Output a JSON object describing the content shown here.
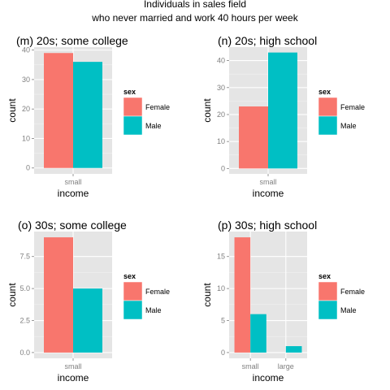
{
  "figure": {
    "title_line1": "Individuals in sales field",
    "title_line2": "who never married and work 40 hours per week"
  },
  "colors": {
    "Female": "#F8766D",
    "Male": "#00BFC4",
    "panel_bg": "#E5E5E5",
    "grid": "#FFFFFF"
  },
  "chart_data": [
    {
      "type": "bar",
      "title": "(m) 20s; some college",
      "xlabel": "income",
      "ylabel": "count",
      "categories": [
        "small"
      ],
      "series": [
        {
          "name": "Female",
          "values": [
            39
          ]
        },
        {
          "name": "Male",
          "values": [
            36
          ]
        }
      ],
      "ylim": [
        -2,
        41
      ],
      "yticks": [
        0,
        10,
        20,
        30,
        40
      ],
      "ytick_labels": [
        "0",
        "10",
        "20",
        "30",
        "40"
      ],
      "legend": {
        "title": "sex",
        "entries": [
          "Female",
          "Male"
        ],
        "placement": "right"
      },
      "grid": true
    },
    {
      "type": "bar",
      "title": "(n) 20s; high school",
      "xlabel": "income",
      "ylabel": "count",
      "categories": [
        "small"
      ],
      "series": [
        {
          "name": "Female",
          "values": [
            23
          ]
        },
        {
          "name": "Male",
          "values": [
            43
          ]
        }
      ],
      "ylim": [
        -2,
        45
      ],
      "yticks": [
        0,
        10,
        20,
        30,
        40
      ],
      "ytick_labels": [
        "0",
        "10",
        "20",
        "30",
        "40"
      ],
      "legend": {
        "title": "sex",
        "entries": [
          "Female",
          "Male"
        ],
        "placement": "right"
      },
      "grid": true
    },
    {
      "type": "bar",
      "title": "(o) 30s; some college",
      "xlabel": "income",
      "ylabel": "count",
      "categories": [
        "small"
      ],
      "series": [
        {
          "name": "Female",
          "values": [
            9
          ]
        },
        {
          "name": "Male",
          "values": [
            5
          ]
        }
      ],
      "ylim": [
        -0.45,
        9.45
      ],
      "yticks": [
        0,
        2.5,
        5,
        7.5
      ],
      "ytick_labels": [
        "0.0",
        "2.5",
        "5.0",
        "7.5"
      ],
      "legend": {
        "title": "sex",
        "entries": [
          "Female",
          "Male"
        ],
        "placement": "right"
      },
      "grid": true
    },
    {
      "type": "bar",
      "title": "(p) 30s; high school",
      "xlabel": "income",
      "ylabel": "count",
      "categories": [
        "small",
        "large"
      ],
      "series": [
        {
          "name": "Female",
          "values": [
            18,
            0
          ]
        },
        {
          "name": "Male",
          "values": [
            6,
            1
          ]
        }
      ],
      "ylim": [
        -0.9,
        18.9
      ],
      "yticks": [
        0,
        5,
        10,
        15
      ],
      "ytick_labels": [
        "0",
        "5",
        "10",
        "15"
      ],
      "legend": {
        "title": "sex",
        "entries": [
          "Female",
          "Male"
        ],
        "placement": "right"
      },
      "grid": true
    }
  ]
}
